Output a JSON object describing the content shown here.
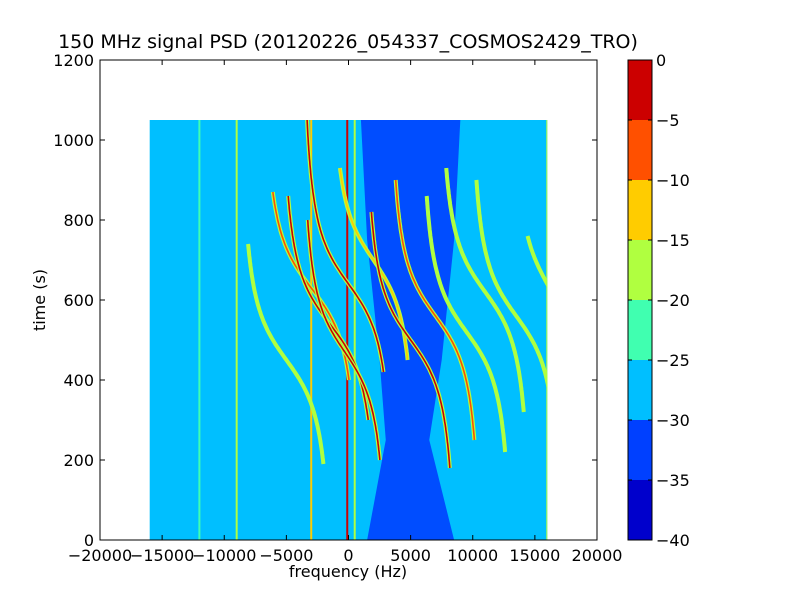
{
  "chart_data": {
    "type": "heatmap",
    "title": "150 MHz signal PSD (20120226_054337_COSMOS2429_TRO)",
    "xlabel": "frequency (Hz)",
    "ylabel": "time (s)",
    "xlim": [
      -20000,
      20000
    ],
    "ylim": [
      0,
      1200
    ],
    "x_ticks": [
      -20000,
      -15000,
      -10000,
      -5000,
      0,
      5000,
      10000,
      15000,
      20000
    ],
    "x_tick_labels": [
      "−20000",
      "−15000",
      "−10000",
      "−5000",
      "0",
      "5000",
      "10000",
      "15000",
      "20000"
    ],
    "y_ticks": [
      0,
      200,
      400,
      600,
      800,
      1000,
      1200
    ],
    "y_tick_labels": [
      "0",
      "200",
      "400",
      "600",
      "800",
      "1000",
      "1200"
    ],
    "data_extent": {
      "x": [
        -16000,
        16000
      ],
      "y": [
        0,
        1050
      ]
    },
    "background_level": [
      -30,
      -25
    ],
    "colorbar": {
      "range": [
        -40,
        0
      ],
      "levels": [
        -40,
        -35,
        -30,
        -25,
        -20,
        -15,
        -10,
        -5,
        0
      ],
      "tick_labels": [
        "−40",
        "−35",
        "−30",
        "−25",
        "−20",
        "−15",
        "−10",
        "−5",
        "0"
      ],
      "colors": [
        "#0000cc",
        "#0040ff",
        "#00bfff",
        "#40ffb0",
        "#b0ff40",
        "#ffcc00",
        "#ff5000",
        "#cc0000"
      ]
    },
    "dark_region": [
      {
        "t": 1050,
        "x": [
          1000,
          9000
        ]
      },
      {
        "t": 750,
        "x": [
          1500,
          8500
        ]
      },
      {
        "t": 450,
        "x": [
          2500,
          7500
        ]
      },
      {
        "t": 250,
        "x": [
          3000,
          6500
        ]
      },
      {
        "t": 0,
        "x": [
          1500,
          8500
        ]
      }
    ],
    "vertical_lines": [
      {
        "x": -12000,
        "level": -25
      },
      {
        "x": -9000,
        "level": -20
      },
      {
        "x": -3000,
        "level": -15
      },
      {
        "x": -100,
        "level": -5
      },
      {
        "x": 500,
        "level": -20
      },
      {
        "x": 16000,
        "level": -20
      }
    ],
    "sweep_traces": [
      {
        "center_freq": -5000,
        "center_time": 450,
        "freq_span": 8000,
        "time_range": [
          190,
          740
        ],
        "peak_level": -20
      },
      {
        "center_freq": -3000,
        "center_time": 630,
        "freq_span": 8500,
        "time_range": [
          400,
          870
        ],
        "peak_level": -10
      },
      {
        "center_freq": -1500,
        "center_time": 540,
        "freq_span": 8500,
        "time_range": [
          300,
          860
        ],
        "peak_level": -5
      },
      {
        "center_freq": 0,
        "center_time": 640,
        "freq_span": 8000,
        "time_range": [
          420,
          1050
        ],
        "peak_level": -5
      },
      {
        "center_freq": -300,
        "center_time": 470,
        "freq_span": 7500,
        "time_range": [
          200,
          800
        ],
        "peak_level": -5
      },
      {
        "center_freq": 2000,
        "center_time": 700,
        "freq_span": 7500,
        "time_range": [
          450,
          930
        ],
        "peak_level": -15
      },
      {
        "center_freq": 5000,
        "center_time": 500,
        "freq_span": 8000,
        "time_range": [
          180,
          820
        ],
        "peak_level": -5
      },
      {
        "center_freq": 7000,
        "center_time": 560,
        "freq_span": 8000,
        "time_range": [
          250,
          900
        ],
        "peak_level": -10
      },
      {
        "center_freq": 9500,
        "center_time": 520,
        "freq_span": 8000,
        "time_range": [
          220,
          860
        ],
        "peak_level": -20
      },
      {
        "center_freq": 11000,
        "center_time": 620,
        "freq_span": 8000,
        "time_range": [
          320,
          930
        ],
        "peak_level": -20
      },
      {
        "center_freq": 13500,
        "center_time": 560,
        "freq_span": 8000,
        "time_range": [
          230,
          900
        ],
        "peak_level": -20
      },
      {
        "center_freq": 16000,
        "center_time": 640,
        "freq_span": 6000,
        "time_range": [
          560,
          760
        ],
        "peak_level": -20
      }
    ]
  }
}
